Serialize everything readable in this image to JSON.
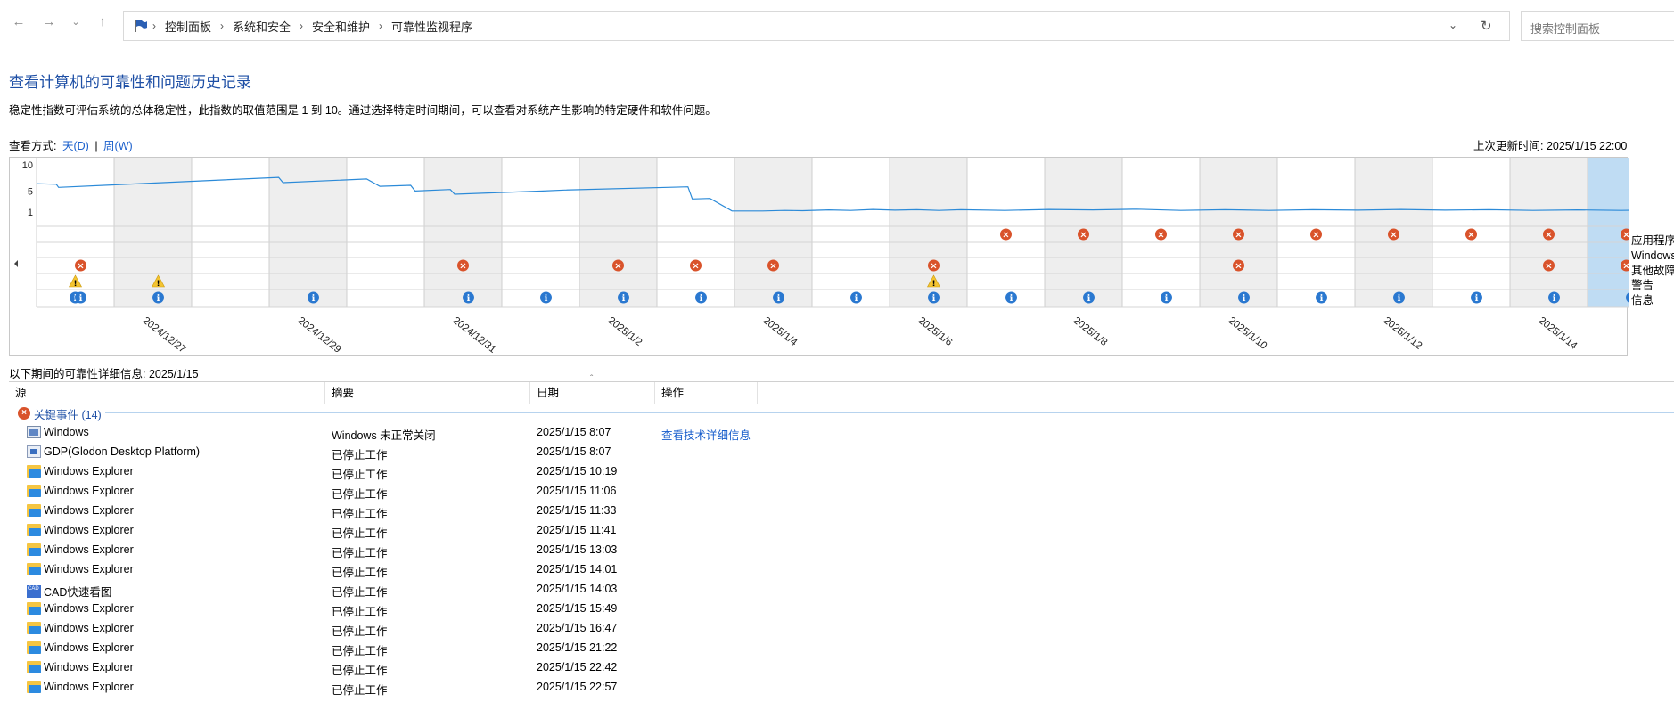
{
  "nav": {
    "breadcrumbs": [
      "控制面板",
      "系统和安全",
      "安全和维护",
      "可靠性监视程序"
    ],
    "search_placeholder": "搜索控制面板"
  },
  "page": {
    "title": "查看计算机的可靠性和问题历史记录",
    "description": "稳定性指数可评估系统的总体稳定性，此指数的取值范围是 1 到 10。通过选择特定时间期间，可以查看对系统产生影响的特定硬件和软件问题。",
    "view_by_label": "查看方式:",
    "view_day": "天(D)",
    "view_sep": "|",
    "view_week": "周(W)",
    "last_updated": "上次更新时间: 2025/1/15 22:00"
  },
  "chart_data": {
    "type": "line",
    "title": "",
    "ylim": [
      1,
      10
    ],
    "y_ticks": [
      "10",
      "5",
      "1"
    ],
    "x_tick_labels": [
      "2024/12/27",
      "2024/12/29",
      "2024/12/31",
      "2025/1/2",
      "2025/1/4",
      "2025/1/6",
      "2025/1/8",
      "2025/1/10",
      "2025/1/12",
      "2025/1/14"
    ],
    "columns": [
      "2024/12/26",
      "2024/12/27",
      "2024/12/28",
      "2024/12/29",
      "2024/12/30",
      "2024/12/31",
      "2025/1/1",
      "2025/1/2",
      "2025/1/3",
      "2025/1/4",
      "2025/1/5",
      "2025/1/6",
      "2025/1/7",
      "2025/1/8",
      "2025/1/9",
      "2025/1/10",
      "2025/1/11",
      "2025/1/12",
      "2025/1/13",
      "2025/1/14",
      "2025/1/15"
    ],
    "selected_column": "2025/1/15",
    "stability_index": [
      {
        "t": 0.0,
        "v": 6.4
      },
      {
        "t": 0.45,
        "v": 6.3
      },
      {
        "t": 0.5,
        "v": 5.7
      },
      {
        "t": 5.5,
        "v": 7.6
      },
      {
        "t": 5.6,
        "v": 6.6
      },
      {
        "t": 7.5,
        "v": 7.3
      },
      {
        "t": 7.8,
        "v": 5.9
      },
      {
        "t": 8.5,
        "v": 6.1
      },
      {
        "t": 8.6,
        "v": 5.0
      },
      {
        "t": 9.4,
        "v": 5.3
      },
      {
        "t": 9.5,
        "v": 4.4
      },
      {
        "t": 11.5,
        "v": 5.0
      },
      {
        "t": 12.0,
        "v": 5.2
      },
      {
        "t": 14.8,
        "v": 5.8
      },
      {
        "t": 14.9,
        "v": 3.5
      },
      {
        "t": 15.3,
        "v": 3.6
      },
      {
        "t": 15.8,
        "v": 1.2
      },
      {
        "t": 16.5,
        "v": 1.2
      },
      {
        "t": 17.0,
        "v": 1.3
      },
      {
        "t": 17.4,
        "v": 1.25
      },
      {
        "t": 18.0,
        "v": 1.4
      },
      {
        "t": 18.5,
        "v": 1.3
      },
      {
        "t": 19.0,
        "v": 1.5
      },
      {
        "t": 19.5,
        "v": 1.35
      },
      {
        "t": 20.0,
        "v": 1.45
      },
      {
        "t": 20.5,
        "v": 1.3
      },
      {
        "t": 21.0,
        "v": 1.45
      },
      {
        "t": 22.0,
        "v": 1.3
      },
      {
        "t": 23.0,
        "v": 1.5
      },
      {
        "t": 24.0,
        "v": 1.4
      },
      {
        "t": 25.0,
        "v": 1.55
      },
      {
        "t": 26.0,
        "v": 1.3
      },
      {
        "t": 27.0,
        "v": 1.45
      },
      {
        "t": 28.0,
        "v": 1.3
      },
      {
        "t": 29.0,
        "v": 1.45
      },
      {
        "t": 30.0,
        "v": 1.35
      },
      {
        "t": 31.0,
        "v": 1.5
      },
      {
        "t": 32.0,
        "v": 1.35
      },
      {
        "t": 33.0,
        "v": 1.45
      },
      {
        "t": 34.0,
        "v": 1.3
      },
      {
        "t": 35.0,
        "v": 1.4
      },
      {
        "t": 36.0,
        "v": 1.3
      },
      {
        "t": 36.9,
        "v": 1.4
      },
      {
        "t": 37.0,
        "v": 1.15
      }
    ],
    "event_rows": [
      "应用程序",
      "Windows",
      "其他故障",
      "警告",
      "信息"
    ],
    "events": [
      {
        "row": 0,
        "cols": [
          12,
          13,
          14,
          15,
          16,
          17,
          18,
          19,
          20
        ],
        "kind": "error"
      },
      {
        "row": 2,
        "cols": [
          0.5,
          5,
          7,
          8,
          9,
          11.5,
          15,
          19,
          20
        ],
        "kind": "error"
      },
      {
        "row": 3,
        "cols": [
          0,
          1.5,
          11.5
        ],
        "kind": "warning"
      },
      {
        "row": 4,
        "cols": [
          0,
          0.5,
          1.5,
          3.5,
          5.5,
          6.5,
          7.5,
          8.5,
          9.5,
          10.5,
          11.5,
          12.5,
          13.5,
          14.5,
          15.5,
          16.5,
          17.5,
          18.5,
          19.5,
          20.5
        ],
        "kind": "info"
      }
    ]
  },
  "period_info": "以下期间的可靠性详细信息: 2025/1/15",
  "table": {
    "headers": [
      "源",
      "摘要",
      "日期",
      "操作"
    ],
    "group_label": "关键事件 (14)",
    "rows": [
      {
        "icon": "windows-icon",
        "source": "Windows",
        "summary": "Windows 未正常关闭",
        "date": "2025/1/15 8:07",
        "action": "查看技术详细信息"
      },
      {
        "icon": "app-icon",
        "source": "GDP(Glodon Desktop Platform)",
        "summary": "已停止工作",
        "date": "2025/1/15 8:07",
        "action": ""
      },
      {
        "icon": "folder-icon",
        "source": "Windows Explorer",
        "summary": "已停止工作",
        "date": "2025/1/15 10:19",
        "action": ""
      },
      {
        "icon": "folder-icon",
        "source": "Windows Explorer",
        "summary": "已停止工作",
        "date": "2025/1/15 11:06",
        "action": ""
      },
      {
        "icon": "folder-icon",
        "source": "Windows Explorer",
        "summary": "已停止工作",
        "date": "2025/1/15 11:33",
        "action": ""
      },
      {
        "icon": "folder-icon",
        "source": "Windows Explorer",
        "summary": "已停止工作",
        "date": "2025/1/15 11:41",
        "action": ""
      },
      {
        "icon": "folder-icon",
        "source": "Windows Explorer",
        "summary": "已停止工作",
        "date": "2025/1/15 13:03",
        "action": ""
      },
      {
        "icon": "folder-icon",
        "source": "Windows Explorer",
        "summary": "已停止工作",
        "date": "2025/1/15 14:01",
        "action": ""
      },
      {
        "icon": "cad-icon",
        "source": "CAD快速看图",
        "summary": "已停止工作",
        "date": "2025/1/15 14:03",
        "action": ""
      },
      {
        "icon": "folder-icon",
        "source": "Windows Explorer",
        "summary": "已停止工作",
        "date": "2025/1/15 15:49",
        "action": ""
      },
      {
        "icon": "folder-icon",
        "source": "Windows Explorer",
        "summary": "已停止工作",
        "date": "2025/1/15 16:47",
        "action": ""
      },
      {
        "icon": "folder-icon",
        "source": "Windows Explorer",
        "summary": "已停止工作",
        "date": "2025/1/15 21:22",
        "action": ""
      },
      {
        "icon": "folder-icon",
        "source": "Windows Explorer",
        "summary": "已停止工作",
        "date": "2025/1/15 22:42",
        "action": ""
      },
      {
        "icon": "folder-icon",
        "source": "Windows Explorer",
        "summary": "已停止工作",
        "date": "2025/1/15 22:57",
        "action": ""
      }
    ]
  },
  "colors": {
    "line": "#2b8ad8",
    "selected_column": "#bfdcf3",
    "shaded_column": "#eeeeee",
    "error": "#d9532b",
    "warning": "#f4c430",
    "info": "#2a78d0",
    "link": "#1a5fcc"
  }
}
